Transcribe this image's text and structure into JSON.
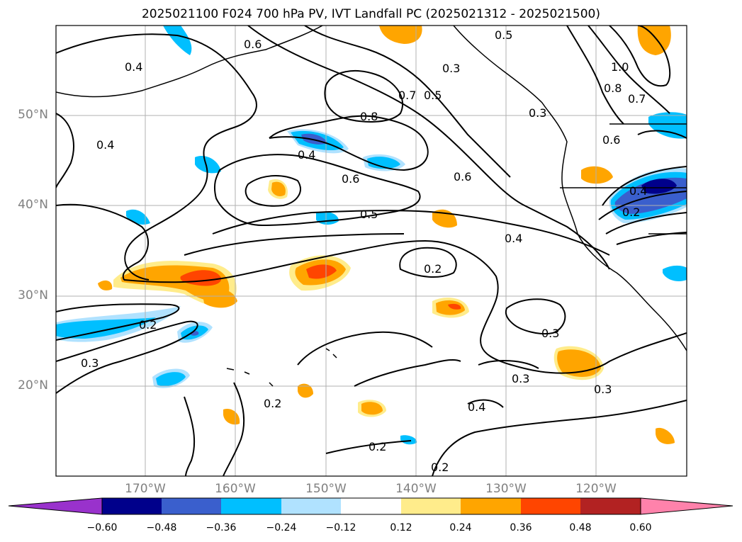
{
  "title": "2025021100 F024 700 hPa PV, IVT Landfall PC (2025021312 - 2025021500)",
  "map": {
    "lat_labels": [
      "50°N",
      "40°N",
      "30°N",
      "20°N"
    ],
    "lon_labels": [
      "170°W",
      "160°W",
      "150°W",
      "140°W",
      "130°W",
      "120°W"
    ],
    "contour_labels": [
      "0.5",
      "0.6",
      "0.3",
      "0.4",
      "0.7",
      "0.5",
      "0.8",
      "0.4",
      "0.4",
      "0.6",
      "0.6",
      "0.5",
      "0.4",
      "0.2",
      "0.2",
      "0.3",
      "0.3",
      "0.3",
      "0.3",
      "0.4",
      "0.2",
      "0.2",
      "0.2",
      "1.0",
      "0.8",
      "0.7",
      "0.6",
      "0.4",
      "0.2",
      "0.3"
    ]
  },
  "colorbar": {
    "colors": [
      "#9932cc",
      "#00008b",
      "#3a5fcd",
      "#00bfff",
      "#b0e2ff",
      "#ffffff",
      "#ffec8b",
      "#ffa500",
      "#ff4500",
      "#b22222",
      "#ff82ab"
    ],
    "tick_labels": [
      "−0.60",
      "−0.48",
      "−0.36",
      "−0.24",
      "−0.12",
      "0.12",
      "0.24",
      "0.36",
      "0.48",
      "0.60"
    ]
  },
  "legend": {
    "map_frame": "map-frame",
    "contours": "pv-contours",
    "coastline": "coastline"
  }
}
